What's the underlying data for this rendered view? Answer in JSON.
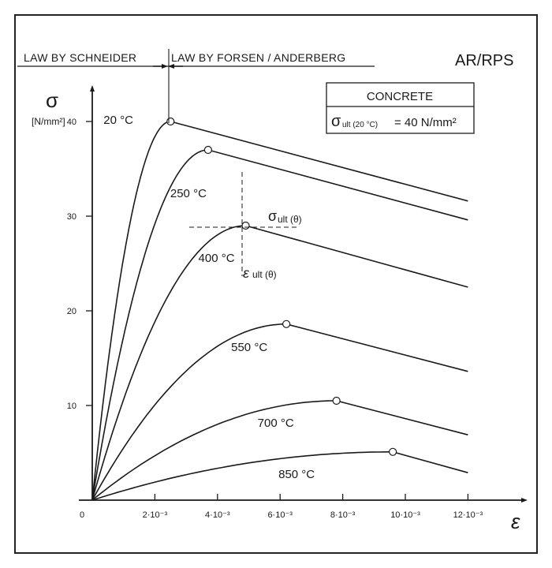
{
  "header": {
    "law_left": "LAW BY SCHNEIDER",
    "law_right": "LAW BY FORSEN / ANDERBERG",
    "code": "AR/RPS"
  },
  "legend_box": {
    "title": "CONCRETE",
    "formula_symbol": "σ",
    "formula_sub": "ult (20 °C)",
    "formula_value": "= 40  N/mm²"
  },
  "annotations": {
    "sigma_ult": {
      "symbol": "σ",
      "sub": "ult (θ)"
    },
    "eps_ult": {
      "symbol": "ε",
      "sub": "ult (θ)"
    }
  },
  "chart_data": {
    "type": "line",
    "title": "",
    "ylabel_symbol": "σ",
    "ylabel_unit": "[N/mm²]",
    "xlabel_symbol": "ε",
    "xlim": [
      0,
      0.0125
    ],
    "ylim": [
      0,
      40
    ],
    "x_ticks": [
      {
        "value": 0,
        "label": "0"
      },
      {
        "value": 0.002,
        "label": "2·10⁻³"
      },
      {
        "value": 0.004,
        "label": "4·10⁻³"
      },
      {
        "value": 0.006,
        "label": "6·10⁻³"
      },
      {
        "value": 0.008,
        "label": "8·10⁻³"
      },
      {
        "value": 0.01,
        "label": "10·10⁻³"
      },
      {
        "value": 0.012,
        "label": "12·10⁻³"
      }
    ],
    "y_ticks": [
      {
        "value": 10,
        "label": "10"
      },
      {
        "value": 20,
        "label": "20"
      },
      {
        "value": 30,
        "label": "30"
      },
      {
        "value": 40,
        "label": "40"
      }
    ],
    "grid": false,
    "legend": "none",
    "series": [
      {
        "name": "20 °C",
        "peak": {
          "x": 0.0025,
          "y": 40.0
        },
        "end": {
          "x": 0.012,
          "y": 31.6
        }
      },
      {
        "name": "250 °C",
        "peak": {
          "x": 0.0037,
          "y": 37.0
        },
        "end": {
          "x": 0.012,
          "y": 29.6
        }
      },
      {
        "name": "400 °C",
        "peak": {
          "x": 0.0049,
          "y": 29.0
        },
        "end": {
          "x": 0.012,
          "y": 22.5
        }
      },
      {
        "name": "550 °C",
        "peak": {
          "x": 0.0062,
          "y": 18.6
        },
        "end": {
          "x": 0.012,
          "y": 13.6
        }
      },
      {
        "name": "700 °C",
        "peak": {
          "x": 0.0078,
          "y": 10.5
        },
        "end": {
          "x": 0.012,
          "y": 6.9
        }
      },
      {
        "name": "850 °C",
        "peak": {
          "x": 0.0096,
          "y": 5.1
        },
        "end": {
          "x": 0.012,
          "y": 2.9
        }
      }
    ]
  }
}
